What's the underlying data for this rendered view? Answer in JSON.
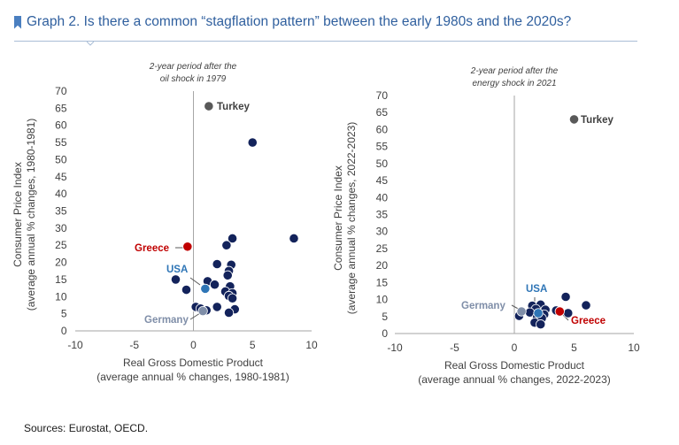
{
  "header": {
    "title": "Graph 2. Is there a common “stagflation pattern” between the early 1980s and the 2020s?"
  },
  "footer": {
    "source": "Sources: Eurostat, OECD."
  },
  "colors": {
    "title": "#2f5f9e",
    "dots": "#13235b",
    "turkey": "#595959",
    "greece": "#c00000",
    "usa": "#2e75b6",
    "germany": "#7f8ea8"
  },
  "chart_data": [
    {
      "type": "scatter",
      "title": "2-year period after the oil shock in 1979",
      "xlabel": "Real Gross Domestic Product (average annual % changes, 1980-1981)",
      "ylabel": "Consumer Price Index (average annual % changes, 1980-1981)",
      "xlim": [
        -10,
        10
      ],
      "ylim": [
        0,
        70
      ],
      "xticks": [
        -10,
        -5,
        0,
        5,
        10
      ],
      "yticks": [
        0,
        5,
        10,
        15,
        20,
        25,
        30,
        35,
        40,
        45,
        50,
        55,
        60,
        65,
        70
      ],
      "grid": false,
      "points": [
        {
          "x": 1.3,
          "y": 65.6,
          "label": "Turkey",
          "kind": "turkey"
        },
        {
          "x": -0.5,
          "y": 24.6,
          "label": "Greece",
          "kind": "greece"
        },
        {
          "x": 1.0,
          "y": 12.3,
          "label": "USA",
          "kind": "usa"
        },
        {
          "x": 0.8,
          "y": 5.8,
          "label": "Germany",
          "kind": "germany"
        },
        {
          "x": 5.0,
          "y": 55.0
        },
        {
          "x": 8.5,
          "y": 27.0
        },
        {
          "x": 3.3,
          "y": 27.0
        },
        {
          "x": 2.8,
          "y": 25.0
        },
        {
          "x": 2.0,
          "y": 19.5
        },
        {
          "x": 3.2,
          "y": 19.3
        },
        {
          "x": 3.0,
          "y": 17.5
        },
        {
          "x": 2.9,
          "y": 16.2
        },
        {
          "x": -1.5,
          "y": 15.0
        },
        {
          "x": 1.2,
          "y": 14.5
        },
        {
          "x": 1.8,
          "y": 13.5
        },
        {
          "x": 3.1,
          "y": 13.0
        },
        {
          "x": 2.7,
          "y": 11.5
        },
        {
          "x": 3.3,
          "y": 11.0
        },
        {
          "x": -0.6,
          "y": 12.0
        },
        {
          "x": 3.0,
          "y": 10.2
        },
        {
          "x": 3.3,
          "y": 9.5
        },
        {
          "x": 0.2,
          "y": 7.0
        },
        {
          "x": 0.6,
          "y": 6.5
        },
        {
          "x": 2.0,
          "y": 7.0
        },
        {
          "x": 1.1,
          "y": 6.0
        },
        {
          "x": 3.5,
          "y": 6.3
        },
        {
          "x": 3.0,
          "y": 5.3
        }
      ]
    },
    {
      "type": "scatter",
      "title": "2-year period after the energy shock in 2021",
      "xlabel": "Real Gross Domestic Product (average annual % changes, 2022-2023)",
      "ylabel": "Consumer Price Index (average annual % changes, 2022-2023)",
      "xlim": [
        -10,
        10
      ],
      "ylim": [
        0,
        70
      ],
      "xticks": [
        -10,
        -5,
        0,
        5,
        10
      ],
      "yticks": [
        0,
        5,
        10,
        15,
        20,
        25,
        30,
        35,
        40,
        45,
        50,
        55,
        60,
        65,
        70
      ],
      "grid": false,
      "points": [
        {
          "x": 5.0,
          "y": 63.0,
          "label": "Turkey",
          "kind": "turkey"
        },
        {
          "x": 3.8,
          "y": 6.5,
          "label": "Greece",
          "kind": "greece"
        },
        {
          "x": 2.0,
          "y": 6.0,
          "label": "USA",
          "kind": "usa"
        },
        {
          "x": 0.6,
          "y": 6.5,
          "label": "Germany",
          "kind": "germany"
        },
        {
          "x": 4.3,
          "y": 10.8
        },
        {
          "x": 6.0,
          "y": 8.3
        },
        {
          "x": 1.5,
          "y": 8.2
        },
        {
          "x": 2.2,
          "y": 8.5
        },
        {
          "x": 1.8,
          "y": 7.2
        },
        {
          "x": 2.6,
          "y": 7.0
        },
        {
          "x": 1.3,
          "y": 6.2
        },
        {
          "x": 2.5,
          "y": 5.6
        },
        {
          "x": 4.5,
          "y": 6.0
        },
        {
          "x": 0.4,
          "y": 5.2
        },
        {
          "x": 1.9,
          "y": 4.8
        },
        {
          "x": 2.3,
          "y": 4.5
        },
        {
          "x": 1.7,
          "y": 3.2
        },
        {
          "x": 2.2,
          "y": 2.7
        },
        {
          "x": 3.5,
          "y": 6.8
        }
      ]
    }
  ]
}
